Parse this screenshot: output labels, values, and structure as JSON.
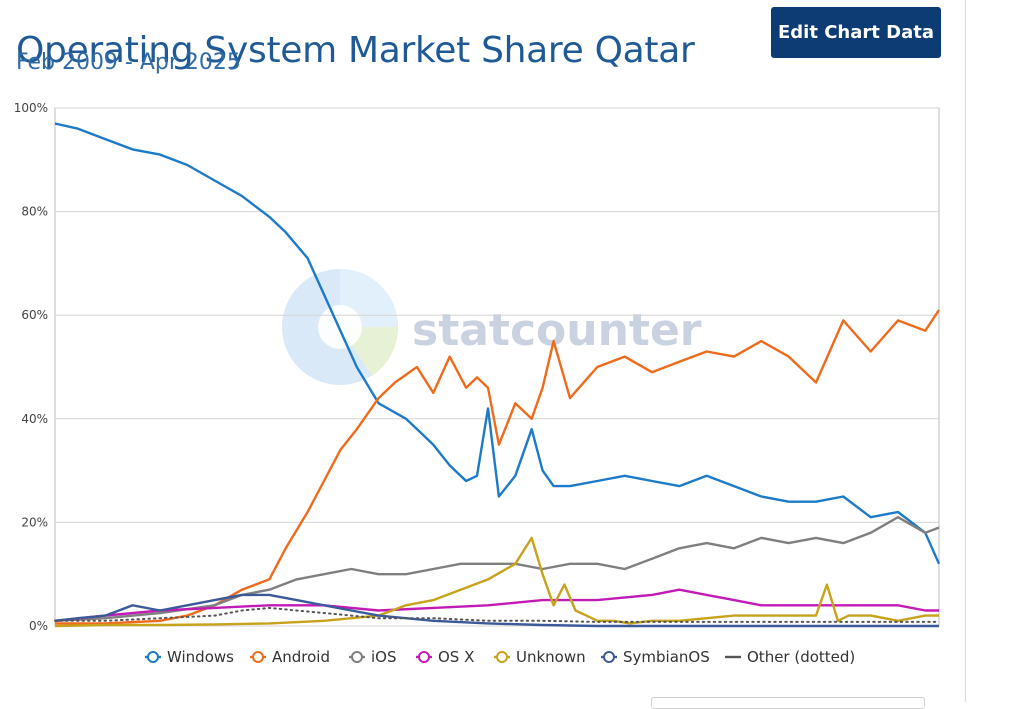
{
  "header": {
    "title": "Operating System Market Share Qatar",
    "subtitle": "Feb 2009 - Apr 2025",
    "edit_button_label": "Edit Chart Data"
  },
  "watermark": {
    "text": "statcounter"
  },
  "chart_data": {
    "type": "line",
    "title": "Operating System Market Share Qatar",
    "subtitle": "Feb 2009 - Apr 2025",
    "x_range": [
      "2009-02",
      "2025-04"
    ],
    "ylim": [
      0,
      100
    ],
    "yticks": [
      "0%",
      "20%",
      "40%",
      "60%",
      "80%",
      "100%"
    ],
    "grid": true,
    "legend_position": "bottom",
    "series": [
      {
        "name": "Windows",
        "color": "#1c7ac8",
        "x": [
          2009.08,
          2009.5,
          2010.0,
          2010.5,
          2011.0,
          2011.5,
          2012.0,
          2012.5,
          2013.0,
          2013.3,
          2013.7,
          2014.0,
          2014.3,
          2014.6,
          2015.0,
          2015.5,
          2015.8,
          2016.0,
          2016.3,
          2016.6,
          2016.8,
          2017.0,
          2017.2,
          2017.5,
          2017.8,
          2018.0,
          2018.2,
          2018.5,
          2019.0,
          2019.5,
          2020.0,
          2020.5,
          2021.0,
          2021.5,
          2022.0,
          2022.5,
          2023.0,
          2023.5,
          2024.0,
          2024.5,
          2025.0,
          2025.25
        ],
        "values": [
          97,
          96,
          94,
          92,
          91,
          89,
          86,
          83,
          79,
          76,
          71,
          64,
          57,
          50,
          43,
          40,
          37,
          35,
          31,
          28,
          29,
          42,
          25,
          29,
          38,
          30,
          27,
          27,
          28,
          29,
          28,
          27,
          29,
          27,
          25,
          24,
          24,
          25,
          21,
          22,
          18,
          12
        ]
      },
      {
        "name": "Android",
        "color": "#ee6b1c",
        "x": [
          2009.08,
          2010.0,
          2011.0,
          2011.5,
          2012.0,
          2012.5,
          2013.0,
          2013.3,
          2013.7,
          2014.0,
          2014.3,
          2014.6,
          2015.0,
          2015.3,
          2015.7,
          2016.0,
          2016.3,
          2016.6,
          2016.8,
          2017.0,
          2017.2,
          2017.5,
          2017.8,
          2018.0,
          2018.2,
          2018.5,
          2019.0,
          2019.5,
          2020.0,
          2020.5,
          2021.0,
          2021.5,
          2022.0,
          2022.5,
          2023.0,
          2023.5,
          2024.0,
          2024.5,
          2025.0,
          2025.25
        ],
        "values": [
          0.5,
          0.5,
          1,
          2,
          4,
          7,
          9,
          15,
          22,
          28,
          34,
          38,
          44,
          47,
          50,
          45,
          52,
          46,
          48,
          46,
          35,
          43,
          40,
          46,
          55,
          44,
          50,
          52,
          49,
          51,
          53,
          52,
          55,
          52,
          47,
          59,
          53,
          59,
          57,
          61
        ]
      },
      {
        "name": "iOS",
        "color": "#7f7f7f",
        "x": [
          2009.08,
          2010.0,
          2011.0,
          2012.0,
          2012.5,
          2013.0,
          2013.5,
          2014.0,
          2014.5,
          2015.0,
          2015.5,
          2016.0,
          2016.5,
          2017.0,
          2017.5,
          2018.0,
          2018.5,
          2019.0,
          2019.5,
          2020.0,
          2020.5,
          2021.0,
          2021.5,
          2022.0,
          2022.5,
          2023.0,
          2023.5,
          2024.0,
          2024.5,
          2025.0,
          2025.25
        ],
        "values": [
          1,
          1.5,
          2.5,
          4,
          6,
          7,
          9,
          10,
          11,
          10,
          10,
          11,
          12,
          12,
          12,
          11,
          12,
          12,
          11,
          13,
          15,
          16,
          15,
          17,
          16,
          17,
          16,
          18,
          21,
          18,
          19
        ]
      },
      {
        "name": "OS X",
        "color": "#c21bb5",
        "x": [
          2009.08,
          2010.0,
          2011.0,
          2012.0,
          2013.0,
          2014.0,
          2015.0,
          2016.0,
          2017.0,
          2018.0,
          2019.0,
          2020.0,
          2020.5,
          2021.0,
          2021.5,
          2022.0,
          2022.5,
          2023.0,
          2023.5,
          2024.0,
          2024.5,
          2025.0,
          2025.25
        ],
        "values": [
          1,
          2,
          3,
          3.5,
          4,
          4,
          3,
          3.5,
          4,
          5,
          5,
          6,
          7,
          6,
          5,
          4,
          4,
          4,
          4,
          4,
          4,
          3,
          3
        ]
      },
      {
        "name": "Unknown",
        "color": "#c7a21a",
        "x": [
          2009.08,
          2010.0,
          2011.0,
          2012.0,
          2013.0,
          2014.0,
          2015.0,
          2015.5,
          2016.0,
          2016.5,
          2017.0,
          2017.5,
          2017.8,
          2018.0,
          2018.2,
          2018.4,
          2018.6,
          2018.8,
          2019.0,
          2019.3,
          2019.6,
          2020.0,
          2020.5,
          2021.0,
          2021.5,
          2022.0,
          2022.5,
          2023.0,
          2023.2,
          2023.4,
          2023.6,
          2024.0,
          2024.5,
          2025.0,
          2025.25
        ],
        "values": [
          0,
          0.2,
          0.2,
          0.3,
          0.5,
          1,
          2,
          4,
          5,
          7,
          9,
          12,
          17,
          10,
          4,
          8,
          3,
          2,
          1,
          1,
          0.5,
          1,
          1,
          1.5,
          2,
          2,
          2,
          2,
          8,
          1,
          2,
          2,
          1,
          2,
          2
        ]
      },
      {
        "name": "SymbianOS",
        "color": "#3c5a9a",
        "x": [
          2009.08,
          2009.5,
          2010.0,
          2010.5,
          2011.0,
          2011.5,
          2012.0,
          2012.5,
          2013.0,
          2013.5,
          2014.0,
          2014.5,
          2015.0,
          2016.0,
          2017.0,
          2018.0,
          2019.0,
          2020.0,
          2021.0,
          2022.0,
          2023.0,
          2024.0,
          2025.0,
          2025.25
        ],
        "values": [
          1,
          1.5,
          2,
          4,
          3,
          4,
          5,
          6,
          6,
          5,
          4,
          3,
          2,
          1,
          0.5,
          0.2,
          0,
          0,
          0,
          0,
          0,
          0,
          0,
          0
        ]
      },
      {
        "name": "Other (dotted)",
        "color": "#555555",
        "dotted": true,
        "x": [
          2009.08,
          2010.0,
          2011.0,
          2012.0,
          2012.5,
          2013.0,
          2013.5,
          2014.0,
          2014.5,
          2015.0,
          2015.5,
          2016.0,
          2017.0,
          2018.0,
          2019.0,
          2020.0,
          2021.0,
          2022.0,
          2023.0,
          2024.0,
          2025.0,
          2025.25
        ],
        "values": [
          1,
          1,
          1.5,
          2,
          3,
          3.5,
          3,
          2.5,
          2,
          1.5,
          1.5,
          1.5,
          1,
          1,
          0.8,
          0.8,
          0.8,
          0.8,
          0.8,
          0.8,
          0.8,
          0.8
        ]
      }
    ]
  }
}
